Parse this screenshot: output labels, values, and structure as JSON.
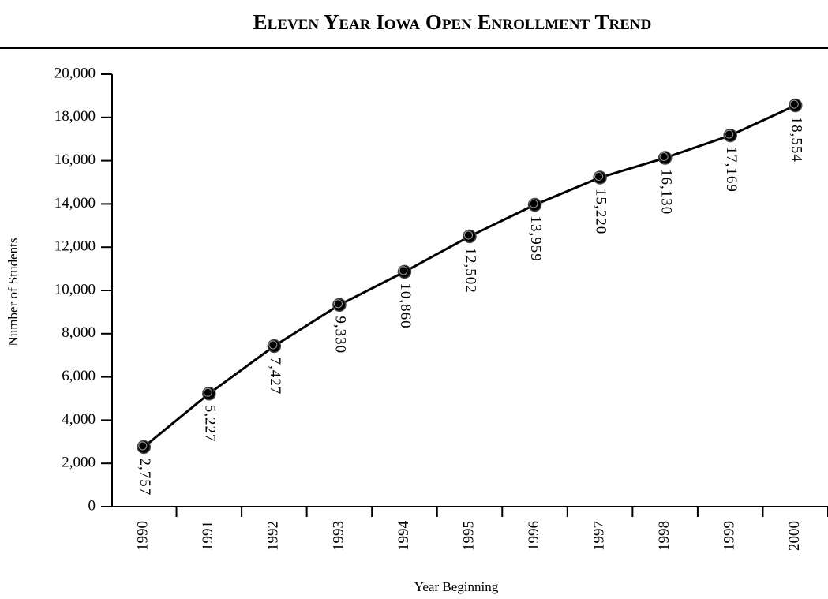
{
  "chart_data": {
    "type": "line",
    "title": "Eleven Year Iowa Open Enrollment Trend",
    "x_label": "Year Beginning",
    "y_label": "Number of Students",
    "categories": [
      "1990",
      "1991",
      "1992",
      "1993",
      "1994",
      "1995",
      "1996",
      "1997",
      "1998",
      "1999",
      "2000"
    ],
    "series": [
      {
        "color": "#000000",
        "values": [
          2757,
          5227,
          7427,
          9330,
          10860,
          12502,
          13959,
          15220,
          16130,
          17169,
          18554
        ],
        "value_labels": [
          "2,757",
          "5,227",
          "7,427",
          "9,330",
          "10,860",
          "12,502",
          "13,959",
          "15,220",
          "16,130",
          "17,169",
          "18,554"
        ]
      }
    ],
    "ylim": [
      0,
      20000
    ],
    "yticks": [
      0,
      {
        "value": 2000,
        "label": "2,000"
      },
      {
        "value": 4000,
        "label": "4,000"
      },
      {
        "value": 6000,
        "label": "6,000"
      },
      {
        "value": 8000,
        "label": "8,000"
      },
      {
        "value": 10000,
        "label": "10,000"
      },
      {
        "value": 12000,
        "label": "12,000"
      },
      {
        "value": 14000,
        "label": "14,000"
      },
      {
        "value": 16000,
        "label": "16,000"
      },
      {
        "value": 18000,
        "label": "18,000"
      },
      {
        "value": 20000,
        "label": "20,000"
      }
    ]
  }
}
